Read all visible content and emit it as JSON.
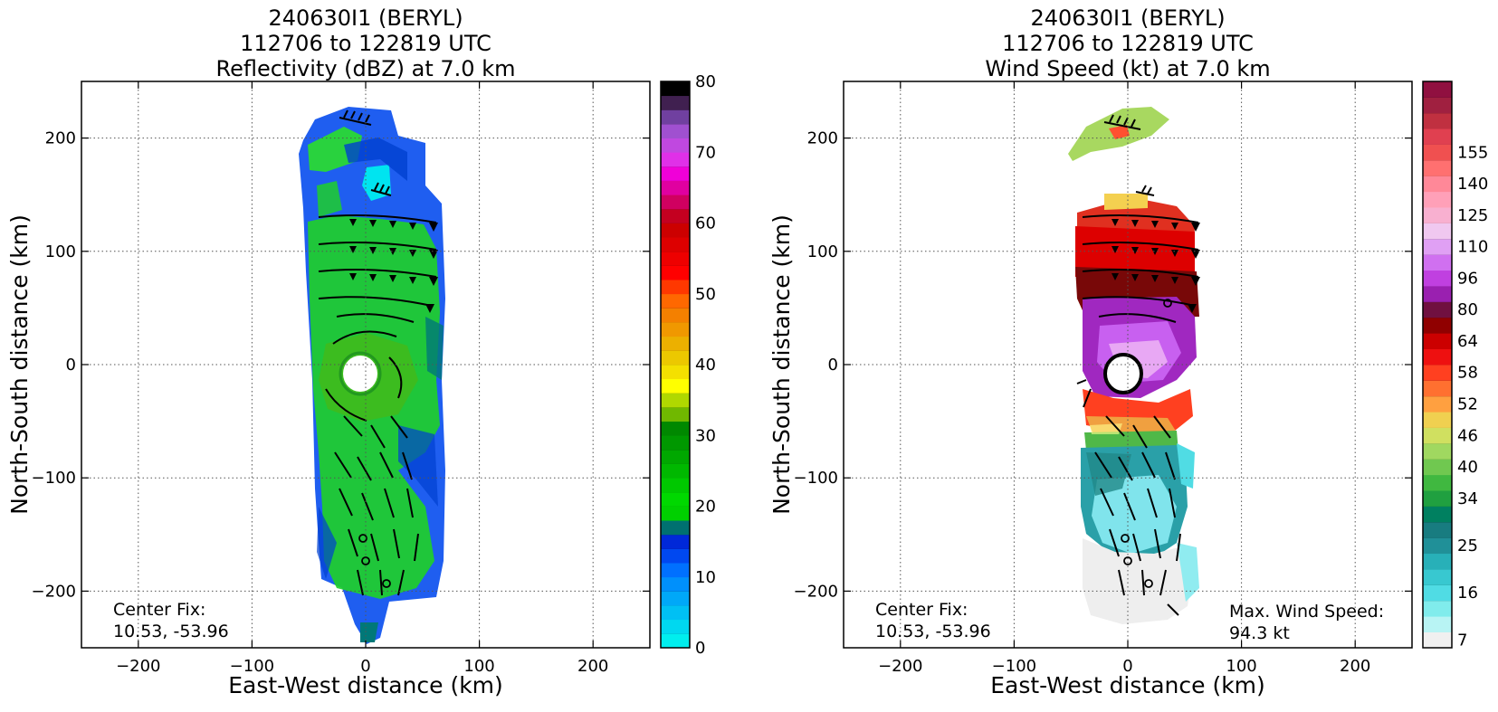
{
  "chart_data": [
    {
      "type": "heatmap",
      "title_lines": [
        "240630I1 (BERYL)",
        "112706 to 122819 UTC",
        "Reflectivity (dBZ) at 7.0 km"
      ],
      "xlabel": "East-West distance (km)",
      "ylabel": "North-South distance (km)",
      "xlim": [
        -250,
        250
      ],
      "ylim": [
        -250,
        250
      ],
      "xticks": [
        -200,
        -100,
        0,
        100,
        200
      ],
      "yticks": [
        -200,
        -100,
        0,
        100,
        200
      ],
      "xtick_labels": [
        "−200",
        "−100",
        "0",
        "100",
        "200"
      ],
      "ytick_labels": [
        "−200",
        "−100",
        "0",
        "100",
        "200"
      ],
      "grid": true,
      "center_fix_label": "Center Fix:",
      "center_fix_value": "10.53, -53.96",
      "colorbar": {
        "vmin": 0,
        "vmax": 80,
        "tick_values": [
          0,
          10,
          20,
          30,
          40,
          50,
          60,
          70,
          80
        ],
        "tick_labels": [
          "0",
          "10",
          "20",
          "30",
          "40",
          "50",
          "60",
          "70",
          "80"
        ],
        "colors": [
          "#00eeee",
          "#00d8f0",
          "#00c0f4",
          "#00a8f8",
          "#0090fc",
          "#0070ff",
          "#0048f0",
          "#0028d8",
          "#007070",
          "#00d000",
          "#00d800",
          "#00c800",
          "#00b800",
          "#00a800",
          "#009800",
          "#008800",
          "#70b800",
          "#b0d800",
          "#ffff00",
          "#f4e000",
          "#ecc800",
          "#ecb000",
          "#f09800",
          "#f48000",
          "#ff6800",
          "#ff3800",
          "#ff0000",
          "#ee0000",
          "#dd0000",
          "#cc0000",
          "#c40020",
          "#d00060",
          "#e000a0",
          "#f000d8",
          "#e030e8",
          "#c048e0",
          "#a050d0",
          "#7040a0",
          "#402050",
          "#000000"
        ]
      }
    },
    {
      "type": "heatmap",
      "title_lines": [
        "240630I1 (BERYL)",
        "112706 to 122819 UTC",
        "Wind Speed (kt) at 7.0 km"
      ],
      "xlabel": "East-West distance (km)",
      "ylabel": "North-South distance (km)",
      "xlim": [
        -250,
        250
      ],
      "ylim": [
        -250,
        250
      ],
      "xticks": [
        -200,
        -100,
        0,
        100,
        200
      ],
      "yticks": [
        -200,
        -100,
        0,
        100,
        200
      ],
      "xtick_labels": [
        "−200",
        "−100",
        "0",
        "100",
        "200"
      ],
      "ytick_labels": [
        "−200",
        "−100",
        "0",
        "100",
        "200"
      ],
      "grid": true,
      "center_fix_label": "Center Fix:",
      "center_fix_value": "10.53, -53.96",
      "max_wind_label": "Max. Wind Speed:",
      "max_wind_value": "94.3 kt",
      "colorbar": {
        "tick_labels": [
          "7",
          "16",
          "25",
          "34",
          "40",
          "46",
          "52",
          "58",
          "64",
          "80",
          "96",
          "110",
          "125",
          "140",
          "155"
        ],
        "tick_bin_index": [
          0,
          3,
          6,
          9,
          11,
          13,
          15,
          17,
          19,
          21,
          23,
          25,
          27,
          29,
          31
        ],
        "colors": [
          "#f0f0f0",
          "#b8f4f4",
          "#80ecec",
          "#50dce4",
          "#38c8d0",
          "#28b0b8",
          "#209098",
          "#187c80",
          "#008060",
          "#20a040",
          "#40b840",
          "#70c850",
          "#a0d860",
          "#d0e060",
          "#f0d050",
          "#ffa040",
          "#ff7030",
          "#ff4020",
          "#ee1010",
          "#cc0000",
          "#900000",
          "#701040",
          "#9a20b0",
          "#c040e0",
          "#d070f0",
          "#e0a0f4",
          "#f0c8f0",
          "#f8b0d0",
          "#ffa0b8",
          "#ff8898",
          "#ff7070",
          "#f05050",
          "#e04050",
          "#c03040",
          "#a02040",
          "#901040"
        ]
      }
    }
  ]
}
